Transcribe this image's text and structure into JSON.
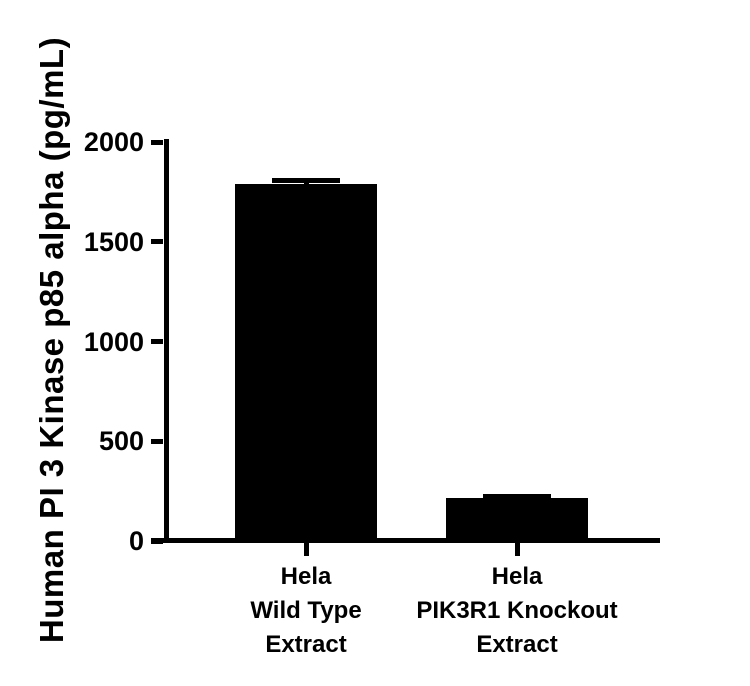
{
  "chart_data": {
    "type": "bar",
    "title": "",
    "ylabel": "Human PI 3 Kinase p85 alpha (pg/mL)",
    "xlabel": "",
    "ylim": [
      0,
      2000
    ],
    "yticks": [
      0,
      500,
      1000,
      1500,
      2000
    ],
    "ytick_labels": [
      "0",
      "500",
      "1000",
      "1500",
      "2000"
    ],
    "categories": [
      "Hela Wild Type Extract",
      "Hela PIK3R1 Knockout Extract"
    ],
    "category_lines": [
      [
        "Hela",
        "Wild Type",
        "Extract"
      ],
      [
        "Hela",
        "PIK3R1 Knockout",
        "Extract"
      ]
    ],
    "values": [
      1790,
      215
    ],
    "error_plus": [
      30,
      20
    ],
    "bar_color": "#000000",
    "axis_color": "#000000",
    "text_color": "#000000",
    "background_color": "#ffffff",
    "grid": false,
    "legend": false
  }
}
